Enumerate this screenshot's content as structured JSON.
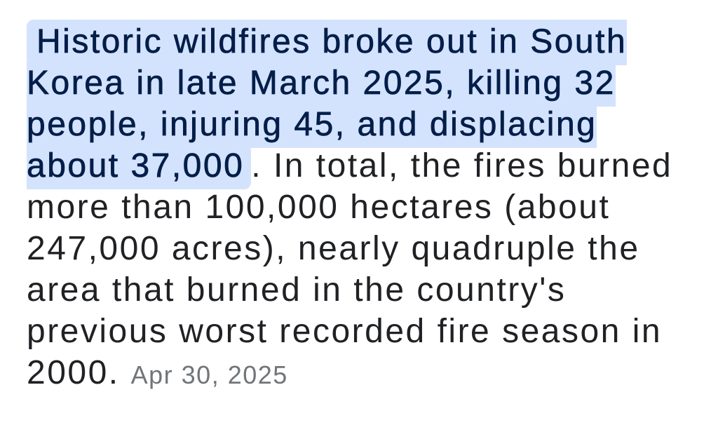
{
  "answer": {
    "highlighted_text": "Historic wildfires broke out in South Korea in late March 2025, killing 32 people, injuring 45, and displacing about 37,000",
    "rest_text": ". In total, the fires burned more than 100,000 hectares (about 247,000 acres), nearly quadruple the area that burned in the country's previous worst recorded fire season in 2000.",
    "date": "Apr 30, 2025"
  },
  "colors": {
    "highlight_bg": "#d3e3fd",
    "highlight_text": "#041e49",
    "body_text": "#202124",
    "date_text": "#70757a",
    "page_bg": "#ffffff"
  }
}
